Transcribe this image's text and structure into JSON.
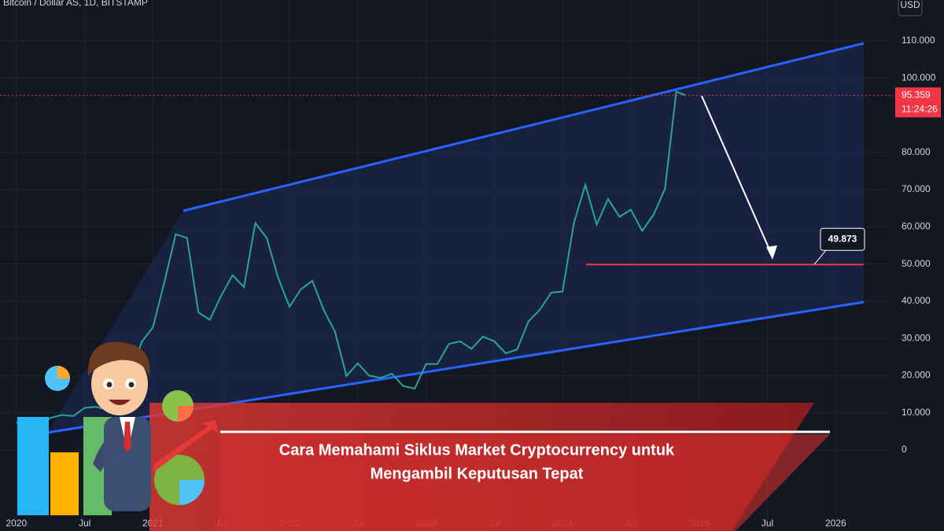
{
  "chart_data": {
    "type": "line",
    "symbol": "Bitcoin / Dollar AS, 1D, BITSTAMP",
    "currency": "USD",
    "headline": [
      "Cara Memahami Siklus Market Cryptocurrency untuk",
      "Mengambil Keputusan Tepat"
    ],
    "last_price": {
      "value": 95359,
      "label": "95.359"
    },
    "countdown": "11:24:26",
    "support_level": {
      "value": 49873,
      "label": "49.873"
    },
    "color": "#26a69a",
    "x": [
      2020.0,
      2020.083,
      2020.167,
      2020.25,
      2020.333,
      2020.417,
      2020.5,
      2020.583,
      2020.667,
      2020.75,
      2020.833,
      2020.917,
      2021.0,
      2021.083,
      2021.167,
      2021.25,
      2021.333,
      2021.417,
      2021.5,
      2021.583,
      2021.667,
      2021.75,
      2021.833,
      2021.917,
      2022.0,
      2022.083,
      2022.167,
      2022.25,
      2022.333,
      2022.417,
      2022.5,
      2022.583,
      2022.667,
      2022.75,
      2022.833,
      2022.917,
      2023.0,
      2023.083,
      2023.167,
      2023.25,
      2023.333,
      2023.417,
      2023.5,
      2023.583,
      2023.667,
      2023.75,
      2023.833,
      2023.917,
      2024.0,
      2024.083,
      2024.167,
      2024.25,
      2024.333,
      2024.417,
      2024.5,
      2024.583,
      2024.667,
      2024.75,
      2024.833,
      2024.9
    ],
    "values": [
      7200,
      8600,
      6400,
      8600,
      9400,
      9100,
      11300,
      11600,
      10800,
      13800,
      19700,
      29000,
      33000,
      45000,
      58000,
      57000,
      37000,
      35000,
      41500,
      47000,
      43800,
      61000,
      57000,
      46300,
      38500,
      43200,
      45500,
      37700,
      31800,
      19900,
      23300,
      20000,
      19400,
      20500,
      17200,
      16500,
      23100,
      23100,
      28500,
      29200,
      27200,
      30500,
      29200,
      26000,
      27000,
      34600,
      37700,
      42300,
      42600,
      61100,
      71300,
      60600,
      67500,
      62700,
      64600,
      58900,
      63300,
      70200,
      96400,
      95359
    ],
    "xlim": [
      2019.88,
      2026.39
    ],
    "ylim": [
      -21800,
      121000
    ],
    "xticks": [
      2020,
      {
        "value": 2020.5,
        "label": "Jul"
      },
      2021,
      {
        "value": 2021.5,
        "label": "Jul"
      },
      2022,
      {
        "value": 2022.5,
        "label": "Jul"
      },
      2023,
      {
        "value": 2023.5,
        "label": "Jul"
      },
      2024,
      {
        "value": 2024.5,
        "label": "Jul"
      },
      2025,
      {
        "value": 2025.5,
        "label": "Jul"
      },
      2026
    ],
    "yticks": [
      0,
      {
        "value": 10000,
        "label": "10.000"
      },
      {
        "value": 20000,
        "label": "20.000"
      },
      {
        "value": 30000,
        "label": "30.000"
      },
      {
        "value": 40000,
        "label": "40.000"
      },
      {
        "value": 50000,
        "label": "50.000"
      },
      {
        "value": 60000,
        "label": "60.000"
      },
      {
        "value": 70000,
        "label": "70.000"
      },
      {
        "value": 80000,
        "label": "80.000"
      },
      {
        "value": 100000,
        "label": "100.000"
      },
      {
        "value": 110000,
        "label": "110.000"
      }
    ],
    "grid": true
  }
}
